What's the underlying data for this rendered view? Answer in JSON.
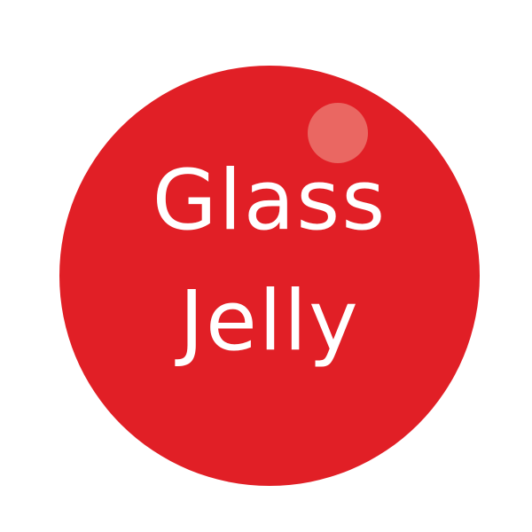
{
  "logo": {
    "line1": "Glass",
    "line2": "Jelly",
    "colors": {
      "background": "#ffffff",
      "circle": "#e11f26",
      "highlight": "#ea6762",
      "text": "#ffffff"
    }
  }
}
